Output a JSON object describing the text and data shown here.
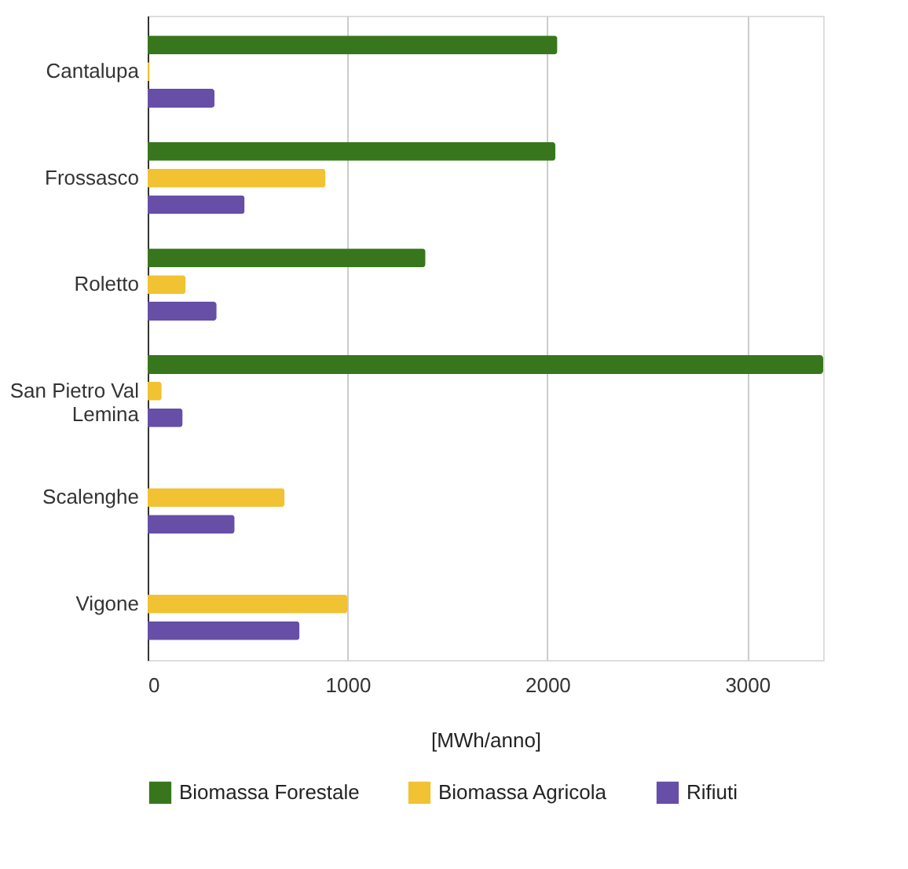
{
  "chart_data": {
    "type": "bar",
    "orientation": "horizontal",
    "xlabel": "[MWh/anno]",
    "categories": [
      "Cantalupa",
      "Frossasco",
      "Roletto",
      "San Pietro Val Lemina",
      "Scalenghe",
      "Vigone"
    ],
    "series": [
      {
        "name": "Biomassa Forestale",
        "color": "#38761d",
        "values": [
          2050,
          2040,
          1390,
          3380,
          null,
          null
        ]
      },
      {
        "name": "Biomassa Agricola",
        "color": "#f1c232",
        "values": [
          10,
          890,
          190,
          70,
          685,
          1000
        ]
      },
      {
        "name": "Rifiuti",
        "color": "#674ea7",
        "values": [
          335,
          485,
          345,
          175,
          435,
          760
        ]
      }
    ],
    "xlim": [
      0,
      3380
    ],
    "xticks": [
      0,
      1000,
      2000,
      3000
    ],
    "grid": "x",
    "legend": "bottom"
  }
}
